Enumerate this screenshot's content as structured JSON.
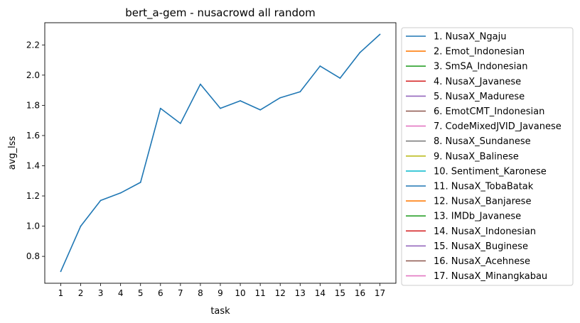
{
  "chart_data": {
    "type": "line",
    "title": "bert_a-gem - nusacrowd all random",
    "xlabel": "task",
    "ylabel": "avg_lss",
    "x": [
      1,
      2,
      3,
      4,
      5,
      6,
      7,
      8,
      9,
      10,
      11,
      12,
      13,
      14,
      15,
      16,
      17
    ],
    "xlim": [
      0.2,
      17.8
    ],
    "ylim": [
      0.622,
      2.347
    ],
    "yticks": [
      0.8,
      1.0,
      1.2,
      1.4,
      1.6,
      1.8,
      2.0,
      2.2
    ],
    "ytick_labels": [
      "0.8",
      "1.0",
      "1.2",
      "1.4",
      "1.6",
      "1.8",
      "2.0",
      "2.2"
    ],
    "grid": false,
    "legend_position": "outside-right",
    "series": [
      {
        "name": "1. NusaX_Ngaju",
        "color": "#1f77b4",
        "values": [
          0.7,
          1.0,
          1.17,
          1.22,
          1.29,
          1.78,
          1.68,
          1.94,
          1.78,
          1.83,
          1.77,
          1.85,
          1.89,
          2.06,
          1.98,
          2.15,
          2.27
        ]
      }
    ],
    "legend": [
      {
        "label": "1. NusaX_Ngaju",
        "color": "#1f77b4"
      },
      {
        "label": "2. Emot_Indonesian",
        "color": "#ff7f0e"
      },
      {
        "label": "3. SmSA_Indonesian",
        "color": "#2ca02c"
      },
      {
        "label": "4. NusaX_Javanese",
        "color": "#d62728"
      },
      {
        "label": "5. NusaX_Madurese",
        "color": "#9467bd"
      },
      {
        "label": "6. EmotCMT_Indonesian",
        "color": "#8c564b"
      },
      {
        "label": "7. CodeMixedJVID_Javanese",
        "color": "#e377c2"
      },
      {
        "label": "8. NusaX_Sundanese",
        "color": "#7f7f7f"
      },
      {
        "label": "9. NusaX_Balinese",
        "color": "#bcbd22"
      },
      {
        "label": "10. Sentiment_Karonese",
        "color": "#17becf"
      },
      {
        "label": "11. NusaX_TobaBatak",
        "color": "#1f77b4"
      },
      {
        "label": "12. NusaX_Banjarese",
        "color": "#ff7f0e"
      },
      {
        "label": "13. IMDb_Javanese",
        "color": "#2ca02c"
      },
      {
        "label": "14. NusaX_Indonesian",
        "color": "#d62728"
      },
      {
        "label": "15. NusaX_Buginese",
        "color": "#9467bd"
      },
      {
        "label": "16. NusaX_Acehnese",
        "color": "#8c564b"
      },
      {
        "label": "17. NusaX_Minangkabau",
        "color": "#e377c2"
      }
    ]
  }
}
